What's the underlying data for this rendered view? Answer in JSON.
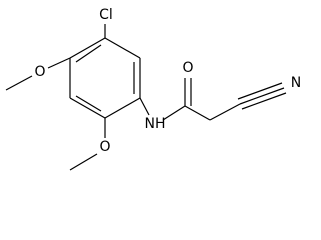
{
  "atoms": [
    {
      "label": "Cl"
    },
    {
      "label": "O"
    },
    {
      "label": "O"
    },
    {
      "label": "NH"
    },
    {
      "label": "O"
    },
    {
      "label": "N"
    }
  ]
}
